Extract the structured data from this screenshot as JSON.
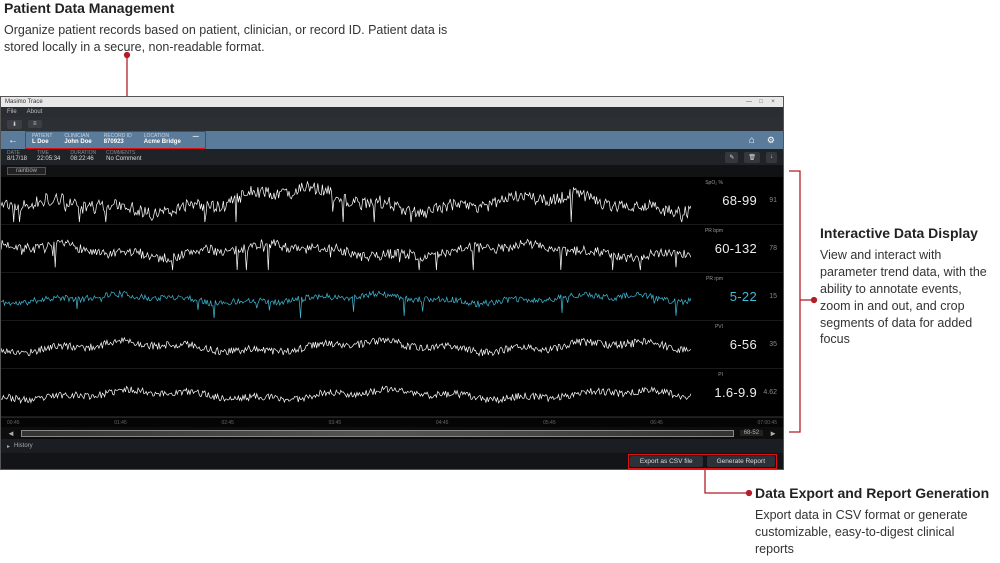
{
  "callouts": {
    "pdm": {
      "title": "Patient Data Management",
      "body": "Organize patient records based on patient, clinician, or record ID. Patient data is stored locally in a secure, non-readable format."
    },
    "idd": {
      "title": "Interactive Data Display",
      "body": "View and interact with parameter trend data, with the ability to annotate events, zoom in and out, and crop segments of data for added focus"
    },
    "der": {
      "title": "Data Export and Report Generation",
      "body": "Export data in CSV format or generate customizable, easy-to-digest clinical reports"
    }
  },
  "titlebar": {
    "title": "Masimo Trace"
  },
  "menu": {
    "file": "File",
    "about": "About"
  },
  "toolbar1": {
    "btn1": "—",
    "btn2": "—"
  },
  "blue": {
    "f1_lab": "PATIENT",
    "f1_val": "L Doe",
    "f2_lab": "CLINICIAN",
    "f2_val": "John Doe",
    "f3_lab": "RECORD ID",
    "f3_val": "870923",
    "f4_lab": "LOCATION",
    "f4_val": "Acme Bridge",
    "f5_lab": "",
    "f5_val": "—"
  },
  "meta": {
    "date_lab": "DATE",
    "date_val": "8/17/18",
    "time_lab": "TIME",
    "time_val": "22:05:34",
    "dur_lab": "DURATION",
    "dur_val": "08:22:46",
    "comm_lab": "COMMENTS",
    "comm_val": "No Comment"
  },
  "session": {
    "label": "rainbow"
  },
  "tracks": [
    {
      "label": "SpO₂ %",
      "range": "68-99",
      "avg": "91",
      "color": "#ffffff",
      "seed": 3,
      "amp": 0.95,
      "spikes": 1,
      "invert": true
    },
    {
      "label": "PR bpm",
      "range": "60-132",
      "avg": "78",
      "color": "#ffffff",
      "seed": 7,
      "amp": 0.7,
      "spikes": 2,
      "invert": false
    },
    {
      "label": "PR rpm",
      "range": "5-22",
      "avg": "15",
      "color": "#3fb9d6",
      "seed": 11,
      "amp": 0.45,
      "spikes": 1,
      "invert": false
    },
    {
      "label": "PVI",
      "range": "6-56",
      "avg": "35",
      "color": "#ffffff",
      "seed": 17,
      "amp": 0.55,
      "spikes": 0,
      "invert": false
    },
    {
      "label": "PI",
      "range": "1.6-9.9",
      "avg": "4.62",
      "color": "#ffffff",
      "seed": 23,
      "amp": 0.5,
      "spikes": 0,
      "invert": false
    }
  ],
  "time_axis": [
    "00:45",
    "01:45",
    "02:45",
    "03:45",
    "04:45",
    "05:45",
    "06:45",
    "07:00:45"
  ],
  "overview": {
    "range": "68-52"
  },
  "history": {
    "label": "History"
  },
  "footer": {
    "export": "Export as CSV file",
    "report": "Generate Report"
  },
  "leader_color": "#b21e28"
}
